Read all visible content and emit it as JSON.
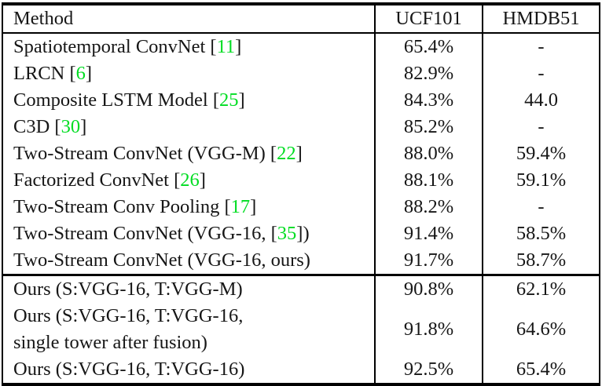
{
  "colors": {
    "citation_green": "#00DD22",
    "text": "#161616",
    "border": "#000000",
    "background": "#FFFFFF"
  },
  "table": {
    "columns": [
      "Method",
      "UCF101",
      "HMDB51"
    ],
    "sections": [
      {
        "name": "published-methods",
        "rows": [
          {
            "method": {
              "pre": "Spatiotemporal ConvNet [",
              "cite": "11",
              "post": "]",
              "line2": ""
            },
            "ucf101": "65.4%",
            "hmdb51": "-"
          },
          {
            "method": {
              "pre": "LRCN [",
              "cite": "6",
              "post": "]",
              "line2": ""
            },
            "ucf101": "82.9%",
            "hmdb51": "-"
          },
          {
            "method": {
              "pre": "Composite LSTM Model [",
              "cite": "25",
              "post": "]",
              "line2": ""
            },
            "ucf101": "84.3%",
            "hmdb51": "44.0"
          },
          {
            "method": {
              "pre": "C3D [",
              "cite": "30",
              "post": "]",
              "line2": ""
            },
            "ucf101": "85.2%",
            "hmdb51": "-"
          },
          {
            "method": {
              "pre": "Two-Stream ConvNet (VGG-M) [",
              "cite": "22",
              "post": "]",
              "line2": ""
            },
            "ucf101": "88.0%",
            "hmdb51": "59.4%"
          },
          {
            "method": {
              "pre": "Factorized ConvNet [",
              "cite": "26",
              "post": "]",
              "line2": ""
            },
            "ucf101": "88.1%",
            "hmdb51": "59.1%"
          },
          {
            "method": {
              "pre": "Two-Stream Conv Pooling [",
              "cite": "17",
              "post": "]",
              "line2": ""
            },
            "ucf101": "88.2%",
            "hmdb51": "-"
          },
          {
            "method": {
              "pre": "Two-Stream ConvNet (VGG-16, [",
              "cite": "35",
              "post": "])",
              "line2": ""
            },
            "ucf101": "91.4%",
            "hmdb51": "58.5%"
          },
          {
            "method": {
              "pre": "Two-Stream ConvNet (VGG-16, ours)",
              "cite": "",
              "post": "",
              "line2": ""
            },
            "ucf101": "91.7%",
            "hmdb51": "58.7%"
          }
        ]
      },
      {
        "name": "ours",
        "rows": [
          {
            "method": {
              "pre": "Ours (S:VGG-16, T:VGG-M)",
              "cite": "",
              "post": "",
              "line2": ""
            },
            "ucf101": "90.8%",
            "hmdb51": "62.1%"
          },
          {
            "method": {
              "pre": "Ours (S:VGG-16, T:VGG-16,",
              "cite": "",
              "post": "",
              "line2": "single tower after fusion)"
            },
            "ucf101": "91.8%",
            "hmdb51": "64.6%"
          },
          {
            "method": {
              "pre": "Ours (S:VGG-16, T:VGG-16)",
              "cite": "",
              "post": "",
              "line2": ""
            },
            "ucf101": "92.5%",
            "hmdb51": "65.4%"
          }
        ]
      }
    ]
  }
}
